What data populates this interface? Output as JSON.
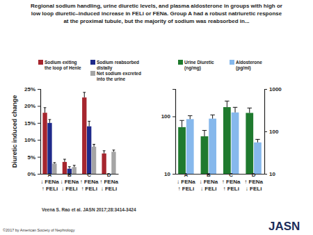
{
  "page": {
    "title": "Regional sodium handling, urine diuretic levels, and plasma aldosterone in groups with high or\nlow loop diuretic–induced increase in FELi or FENa. Group A had a robust natriuretic response\nat the proximal tubule, but the majority of sodium was reabsorbed in...",
    "citation": "Veena S. Rao et al. JASN 2017;28:3414-3424",
    "copyright": "©2017 by American Society of Nephrology",
    "logo": "JASN"
  },
  "chart_data": [
    {
      "type": "bar",
      "y_label": "Diuretic induced change",
      "categories": [
        "A\n↓ FENa\n↑ FELi",
        "B\n↓ FENa\n↓ FELi",
        "C\n↑ FENa\n↑ FELi",
        "D\n↑ FENa\n↓ FELi"
      ],
      "ylim": [
        0,
        25
      ],
      "yticks": [
        {
          "value": 0,
          "label": "0%"
        },
        {
          "value": 5,
          "label": "5%"
        },
        {
          "value": 10,
          "label": "10%"
        },
        {
          "value": 15,
          "label": "15%"
        },
        {
          "value": 20,
          "label": "20%"
        },
        {
          "value": 25,
          "label": "25%"
        }
      ],
      "grid": false,
      "series": [
        {
          "name": "Sodium exiting\nthe loop of Henle",
          "color": "#a6262e",
          "values": [
            18,
            3.5,
            22.5,
            6
          ],
          "errors": [
            1.5,
            0.8,
            1.5,
            0.8
          ]
        },
        {
          "name": "Sodium reabsorbed\ndistally",
          "color": "#1f2a8a",
          "values": [
            15,
            1.5,
            14,
            null
          ],
          "errors": [
            1,
            0.6,
            1.5,
            null
          ]
        },
        {
          "name": "Net sodium excreted\ninto the urine",
          "color": "#a5a5a5",
          "values": [
            3,
            2,
            8,
            6.5
          ],
          "errors": [
            0.3,
            0.5,
            0.7,
            0.5
          ]
        }
      ]
    },
    {
      "type": "bar",
      "log": "y",
      "categories": [
        "A\n↓ FENa\n↑ FELi",
        "B\n↓ FENa\n↓ FELi",
        "C\n↑ FENa\n↑ FELi",
        "D\n↑ FENa\n↓ FELi"
      ],
      "ylim": [
        10,
        300
      ],
      "yticks": [
        10,
        100
      ],
      "y2lim": [
        10,
        1000
      ],
      "y2ticks": [
        10,
        100,
        1000
      ],
      "grid": false,
      "series": [
        {
          "name": "Urine Diuretic\n(ng/mg)",
          "color": "#1f7a2e",
          "values": [
            65,
            45,
            145,
            115
          ],
          "errors": [
            20,
            12,
            40,
            25
          ]
        },
        {
          "name": "Aldosterone\n(pg/ml)",
          "color": "#86b8ec",
          "values": [
            195,
            200,
            280,
            55
          ],
          "errors": [
            40,
            45,
            90,
            10
          ],
          "axis": "y2"
        }
      ]
    }
  ]
}
